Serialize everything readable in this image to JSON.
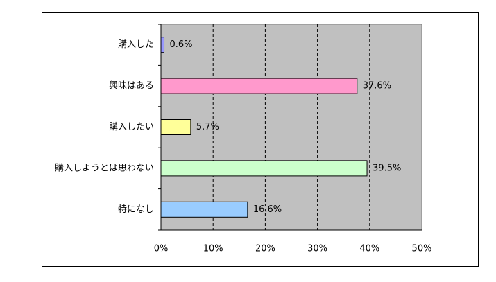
{
  "chart_data": {
    "type": "bar",
    "orientation": "horizontal",
    "categories": [
      "購入した",
      "興味はある",
      "購入したい",
      "購入しようとは思わない",
      "特になし"
    ],
    "values": [
      0.6,
      37.6,
      5.7,
      39.5,
      16.6
    ],
    "value_labels": [
      "0.6%",
      "37.6%",
      "5.7%",
      "39.5%",
      "16.6%"
    ],
    "colors": [
      "#9999ff",
      "#ff99cc",
      "#ffff99",
      "#ccffcc",
      "#99ccff"
    ],
    "xlim": [
      0,
      50
    ],
    "xticks": [
      {
        "value": 0,
        "label": "0%"
      },
      {
        "value": 10,
        "label": "10%"
      },
      {
        "value": 20,
        "label": "20%"
      },
      {
        "value": 30,
        "label": "30%"
      },
      {
        "value": 40,
        "label": "40%"
      },
      {
        "value": 50,
        "label": "50%"
      }
    ],
    "grid": true
  }
}
